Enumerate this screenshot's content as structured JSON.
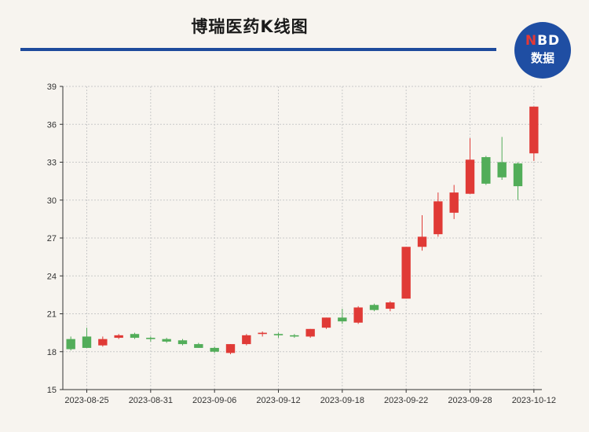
{
  "header": {
    "title": "博瑞医药K线图",
    "logo_top": "NBD",
    "logo_bottom": "数据"
  },
  "colors": {
    "up": "#e03a36",
    "down": "#52ad59",
    "accent": "#1e4a9c",
    "grid": "#c9c9c9"
  },
  "chart_data": {
    "type": "candlestick",
    "title": "博瑞医药K线图",
    "ylim": [
      15,
      39
    ],
    "yticks": [
      15,
      18,
      21,
      24,
      27,
      30,
      33,
      36,
      39
    ],
    "xtick_labels": [
      "2023-08-25",
      "2023-08-31",
      "2023-09-06",
      "2023-09-12",
      "2023-09-18",
      "2023-09-22",
      "2023-09-28",
      "2023-10-12"
    ],
    "xtick_index": [
      1,
      5,
      9,
      13,
      17,
      21,
      25,
      29
    ],
    "grid": true,
    "candles": [
      {
        "date": "2023-08-24",
        "open": 19.0,
        "high": 19.2,
        "low": 18.1,
        "close": 18.2
      },
      {
        "date": "2023-08-25",
        "open": 19.2,
        "high": 19.9,
        "low": 18.3,
        "close": 18.3
      },
      {
        "date": "2023-08-28",
        "open": 18.5,
        "high": 19.2,
        "low": 18.4,
        "close": 19.0
      },
      {
        "date": "2023-08-29",
        "open": 19.1,
        "high": 19.4,
        "low": 19.0,
        "close": 19.3
      },
      {
        "date": "2023-08-30",
        "open": 19.4,
        "high": 19.5,
        "low": 19.0,
        "close": 19.1
      },
      {
        "date": "2023-08-31",
        "open": 19.1,
        "high": 19.2,
        "low": 18.8,
        "close": 19.0
      },
      {
        "date": "2023-09-01",
        "open": 19.0,
        "high": 19.1,
        "low": 18.7,
        "close": 18.8
      },
      {
        "date": "2023-09-04",
        "open": 18.9,
        "high": 19.0,
        "low": 18.5,
        "close": 18.6
      },
      {
        "date": "2023-09-05",
        "open": 18.6,
        "high": 18.7,
        "low": 18.3,
        "close": 18.3
      },
      {
        "date": "2023-09-06",
        "open": 18.3,
        "high": 18.4,
        "low": 17.9,
        "close": 18.0
      },
      {
        "date": "2023-09-07",
        "open": 17.9,
        "high": 18.6,
        "low": 17.8,
        "close": 18.6
      },
      {
        "date": "2023-09-08",
        "open": 18.6,
        "high": 19.4,
        "low": 18.5,
        "close": 19.3
      },
      {
        "date": "2023-09-11",
        "open": 19.4,
        "high": 19.6,
        "low": 19.2,
        "close": 19.5
      },
      {
        "date": "2023-09-12",
        "open": 19.4,
        "high": 19.5,
        "low": 19.1,
        "close": 19.3
      },
      {
        "date": "2023-09-13",
        "open": 19.3,
        "high": 19.4,
        "low": 19.1,
        "close": 19.2
      },
      {
        "date": "2023-09-14",
        "open": 19.2,
        "high": 19.8,
        "low": 19.1,
        "close": 19.8
      },
      {
        "date": "2023-09-15",
        "open": 19.9,
        "high": 20.7,
        "low": 19.8,
        "close": 20.7
      },
      {
        "date": "2023-09-18",
        "open": 20.7,
        "high": 21.4,
        "low": 20.2,
        "close": 20.4
      },
      {
        "date": "2023-09-19",
        "open": 20.3,
        "high": 21.6,
        "low": 20.2,
        "close": 21.5
      },
      {
        "date": "2023-09-20",
        "open": 21.7,
        "high": 21.8,
        "low": 21.2,
        "close": 21.3
      },
      {
        "date": "2023-09-21",
        "open": 21.4,
        "high": 22.0,
        "low": 21.2,
        "close": 21.9
      },
      {
        "date": "2023-09-22",
        "open": 22.2,
        "high": 26.3,
        "low": 22.2,
        "close": 26.3
      },
      {
        "date": "2023-09-25",
        "open": 26.3,
        "high": 28.8,
        "low": 26.0,
        "close": 27.1
      },
      {
        "date": "2023-09-26",
        "open": 27.3,
        "high": 30.6,
        "low": 27.1,
        "close": 29.9
      },
      {
        "date": "2023-09-27",
        "open": 29.0,
        "high": 31.2,
        "low": 28.5,
        "close": 30.6
      },
      {
        "date": "2023-09-28",
        "open": 30.5,
        "high": 34.9,
        "low": 30.5,
        "close": 33.2
      },
      {
        "date": "2023-10-09",
        "open": 33.4,
        "high": 33.5,
        "low": 31.2,
        "close": 31.3
      },
      {
        "date": "2023-10-10",
        "open": 33.0,
        "high": 35.0,
        "low": 31.6,
        "close": 31.8
      },
      {
        "date": "2023-10-11",
        "open": 32.9,
        "high": 33.0,
        "low": 30.0,
        "close": 31.1
      },
      {
        "date": "2023-10-12",
        "open": 33.7,
        "high": 37.4,
        "low": 33.1,
        "close": 37.4
      }
    ]
  }
}
